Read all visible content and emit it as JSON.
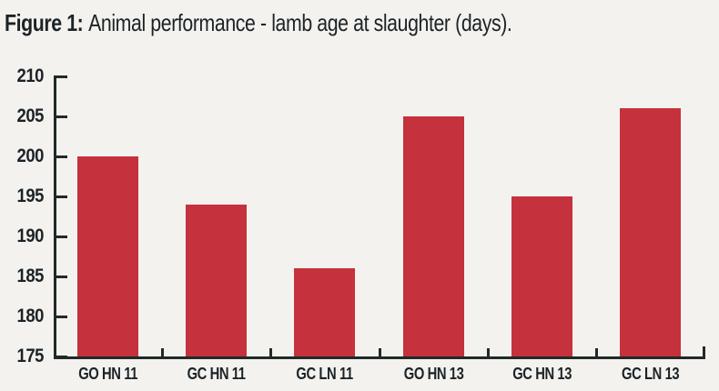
{
  "title": {
    "label": "Figure 1:",
    "text": "Animal performance - lamb age at slaughter (days)."
  },
  "chart_data": {
    "type": "bar",
    "title": "Figure 1: Animal performance - lamb age at slaughter (days).",
    "categories": [
      "GO HN 11",
      "GC HN 11",
      "GC LN 11",
      "GO HN 13",
      "GC HN 13",
      "GC LN 13"
    ],
    "values": [
      200,
      194,
      186,
      205,
      195,
      206
    ],
    "xlabel": "",
    "ylabel": "",
    "ylim": [
      175,
      210
    ],
    "yticks": [
      210,
      205,
      200,
      195,
      190,
      185,
      180,
      175
    ],
    "grid": false,
    "legend_position": "none",
    "bar_color": "#c5313d",
    "axis_color": "#202a27",
    "text_color": "#1c2326",
    "background_color": "#f3f2ef"
  }
}
